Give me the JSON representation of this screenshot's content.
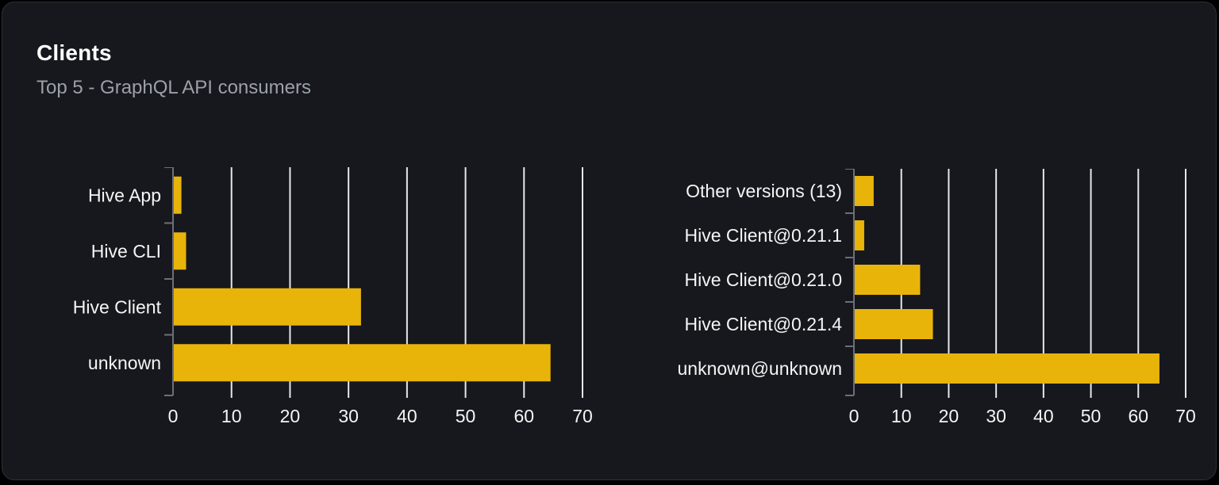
{
  "card": {
    "title": "Clients",
    "subtitle": "Top 5 - GraphQL API consumers"
  },
  "colors": {
    "bar": "#e9b40a",
    "grid": "#e4e7eb",
    "axis": "#6c6f76",
    "tick_label": "#f4f5f6",
    "category_label": "#f4f5f6",
    "card_bg": "#16181d",
    "card_border": "#2c2f36",
    "page_bg": "#000000",
    "title_text": "#ffffff",
    "subtitle_text": "#9ba1a9"
  },
  "chart_data": [
    {
      "type": "bar",
      "orientation": "horizontal",
      "categories": [
        "Hive App",
        "Hive CLI",
        "Hive Client",
        "unknown"
      ],
      "values": [
        1.3,
        2.1,
        32,
        64.4
      ],
      "xlim": [
        0,
        70
      ],
      "xticks": [
        0,
        10,
        20,
        30,
        40,
        50,
        60,
        70
      ],
      "title": "",
      "xlabel": "",
      "ylabel": "",
      "grid": "vertical",
      "legend": "none"
    },
    {
      "type": "bar",
      "orientation": "horizontal",
      "categories": [
        "Other versions (13)",
        "Hive Client@0.21.1",
        "Hive Client@0.21.0",
        "Hive Client@0.21.4",
        "unknown@unknown"
      ],
      "values": [
        4,
        2,
        13.8,
        16.5,
        64.3
      ],
      "xlim": [
        0,
        70
      ],
      "xticks": [
        0,
        10,
        20,
        30,
        40,
        50,
        60,
        70
      ],
      "title": "",
      "xlabel": "",
      "ylabel": "",
      "grid": "vertical",
      "legend": "none"
    }
  ]
}
